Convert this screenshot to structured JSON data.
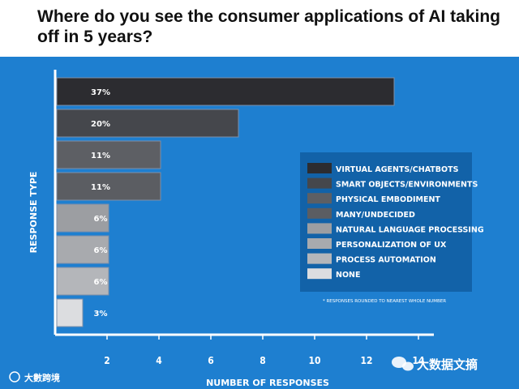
{
  "title": "Where do you see the consumer applications of AI taking off in 5 years?",
  "chart_data": {
    "type": "bar",
    "orientation": "horizontal",
    "title": "Where do you see the consumer applications of AI taking off in 5 years?",
    "xlabel": "NUMBER OF RESPONSES",
    "ylabel": "RESPONSE TYPE",
    "xlim": [
      0,
      14
    ],
    "xticks": [
      2,
      4,
      6,
      8,
      10,
      12,
      14
    ],
    "categories": [
      "VIRTUAL AGENTS/CHATBOTS",
      "SMART OBJECTS/ENVIRONMENTS",
      "PHYSICAL EMBODIMENT",
      "MANY/UNDECIDED",
      "NATURAL LANGUAGE PROCESSING",
      "PERSONALIZATION OF UX",
      "PROCESS AUTOMATION",
      "NONE"
    ],
    "values": [
      13,
      7,
      4,
      4,
      2,
      2,
      2,
      1
    ],
    "percent_labels": [
      "37%",
      "20%",
      "11%",
      "11%",
      "6%",
      "6%",
      "6%",
      "3%"
    ],
    "colors": [
      "#2c2c30",
      "#45474c",
      "#5d5f64",
      "#5b5d62",
      "#9c9ea2",
      "#a8aaae",
      "#b4b6ba",
      "#dcdde0"
    ],
    "legend_position": "right",
    "footnote": "* RESPONSES ROUNDED TO NEAREST WHOLE NUMBER"
  },
  "colors": {
    "panel": "#1e7fd0",
    "legend_box": "#1262a8",
    "axis": "#ffffff"
  },
  "watermarks": {
    "left": "大數跨境",
    "right": "大数据文摘"
  }
}
